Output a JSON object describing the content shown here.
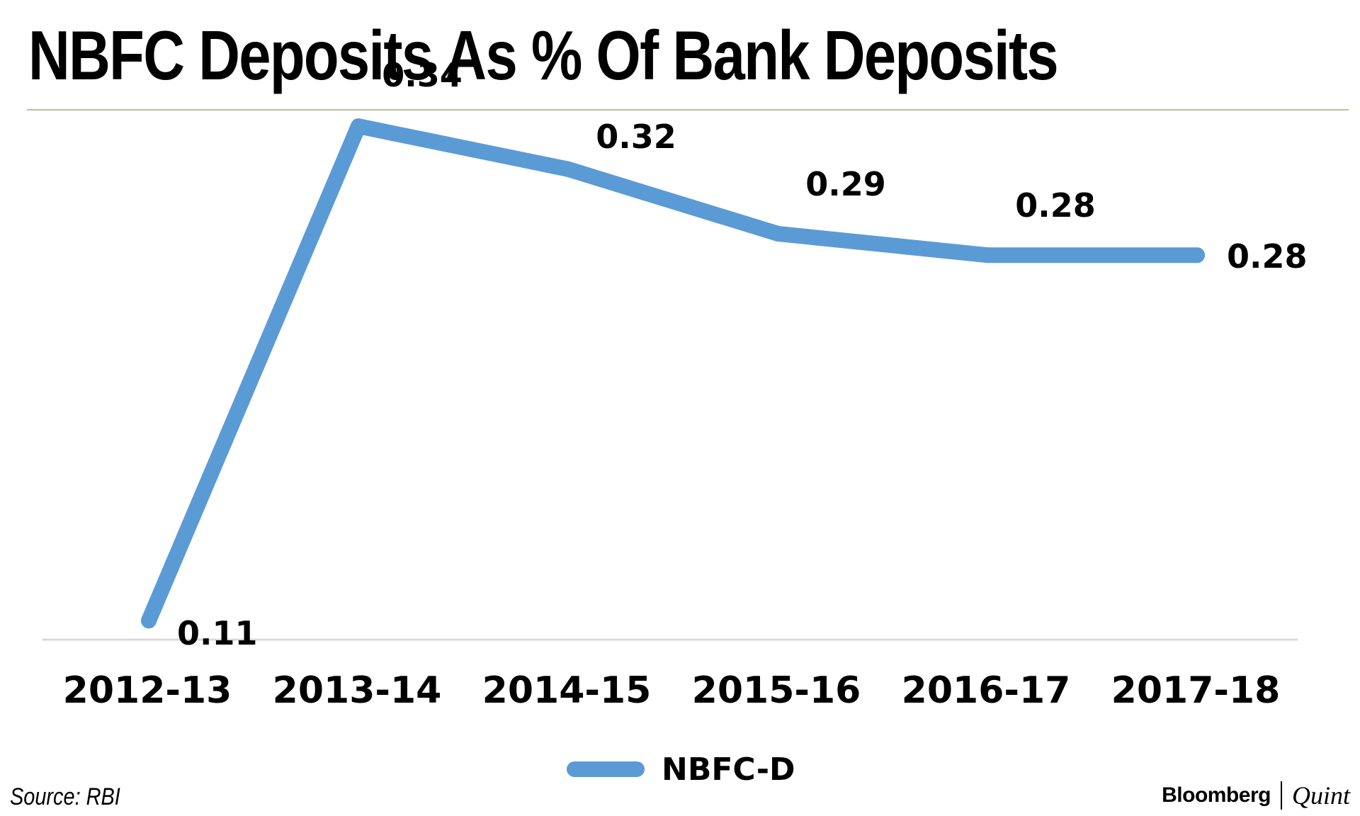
{
  "title": "NBFC Deposits As % Of Bank Deposits",
  "source": "Source: RBI",
  "brand": {
    "primary": "Bloomberg",
    "secondary": "Quint"
  },
  "colors": {
    "series": "#5b9bd5",
    "title_rule": "#c9b8a0",
    "axis": "#d9d9d9"
  },
  "chart_data": {
    "type": "line",
    "title": "NBFC Deposits As % Of Bank Deposits",
    "xlabel": "",
    "ylabel": "",
    "categories": [
      "2012-13",
      "2013-14",
      "2014-15",
      "2015-16",
      "2016-17",
      "2017-18"
    ],
    "series": [
      {
        "name": "NBFC-D",
        "values": [
          0.11,
          0.34,
          0.32,
          0.29,
          0.28,
          0.28
        ],
        "labels": [
          "0.11",
          "0.34",
          "0.32",
          "0.29",
          "0.28",
          "0.28"
        ]
      }
    ],
    "ylim": [
      0,
      0.4
    ],
    "grid": false,
    "legend": "bottom-center"
  }
}
